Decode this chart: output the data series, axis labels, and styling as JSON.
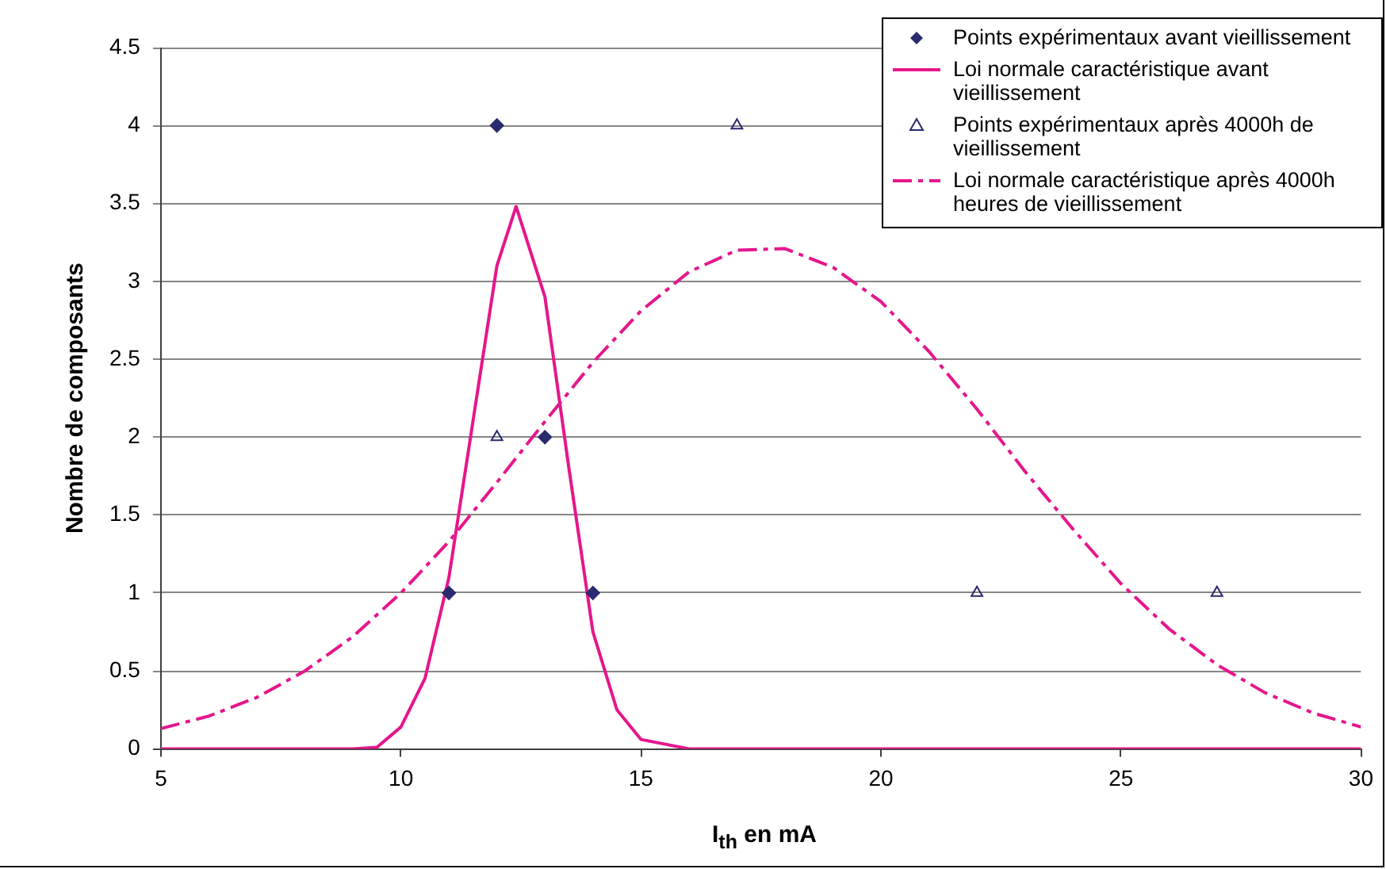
{
  "chart_data": {
    "type": "scatter",
    "xlabel": "I$_{th}$ en mA",
    "ylabel": "Nombre de composants",
    "xlim": [
      5,
      30
    ],
    "xticks": [
      5,
      10,
      15,
      20,
      25,
      30
    ],
    "ylim": [
      0,
      4.5
    ],
    "yticks": [
      0,
      0.5,
      1,
      1.5,
      2,
      2.5,
      3,
      3.5,
      4,
      4.5
    ],
    "grid": "y",
    "legend": "top right",
    "series": [
      {
        "name": "Points expérimentaux avant vieillissement",
        "type": "scatter",
        "marker": "diamond",
        "color": "#2a2a6e",
        "x": [
          11,
          12,
          13,
          14
        ],
        "values": [
          1,
          4,
          2,
          1
        ]
      },
      {
        "name": "Loi normale caractéristique avant vieillissement",
        "type": "line",
        "marker": "none",
        "line_style": "solid",
        "color": "#e6168c",
        "x": [
          5,
          6,
          7,
          8,
          9,
          9.5,
          10,
          10.5,
          11,
          11.5,
          12,
          12.4,
          13,
          13.5,
          14,
          14.5,
          15,
          16,
          20,
          25,
          30
        ],
        "values": [
          0,
          0,
          0,
          0,
          0,
          0.01,
          0.14,
          0.45,
          1.1,
          2.1,
          3.1,
          3.48,
          2.9,
          1.8,
          0.75,
          0.25,
          0.06,
          0,
          0,
          0,
          0
        ]
      },
      {
        "name": "Points expérimentaux après 4000h de vieillissement",
        "type": "scatter",
        "marker": "triangle",
        "color": "#2a2a6e",
        "x": [
          12,
          17,
          22,
          27
        ],
        "values": [
          2,
          4,
          1,
          1
        ]
      },
      {
        "name": "Loi normale caractéristique après 4000h heures de vieillissement",
        "type": "line",
        "marker": "none",
        "line_style": "dashed",
        "color": "#e6168c",
        "x": [
          5,
          6,
          7,
          8,
          9,
          10,
          11,
          12,
          13,
          14,
          15,
          16,
          17,
          18,
          19,
          20,
          21,
          22,
          23,
          24,
          25,
          26,
          27,
          28,
          29,
          30
        ],
        "values": [
          0.13,
          0.21,
          0.33,
          0.5,
          0.72,
          1.0,
          1.33,
          1.71,
          2.1,
          2.48,
          2.81,
          3.06,
          3.2,
          3.21,
          3.09,
          2.87,
          2.55,
          2.18,
          1.78,
          1.41,
          1.06,
          0.77,
          0.54,
          0.36,
          0.23,
          0.14
        ]
      }
    ]
  }
}
